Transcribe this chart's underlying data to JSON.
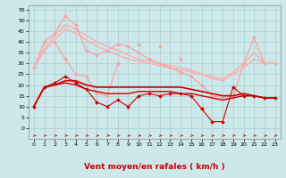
{
  "x": [
    0,
    1,
    2,
    3,
    4,
    5,
    6,
    7,
    8,
    9,
    10,
    11,
    12,
    13,
    14,
    15,
    16,
    17,
    18,
    19,
    20,
    21,
    22,
    23
  ],
  "series": [
    {
      "label": "light_top",
      "color": "#ff9999",
      "lw": 0.8,
      "marker": "D",
      "ms": 1.8,
      "values": [
        28,
        40,
        44,
        52,
        48,
        36,
        34,
        36,
        39,
        38,
        35,
        32,
        30,
        28,
        26,
        24,
        20,
        15,
        14,
        14,
        30,
        42,
        30,
        30
      ]
    },
    {
      "label": "light_scatter",
      "color": "#ff9999",
      "lw": 0.8,
      "marker": "D",
      "ms": 1.8,
      "values": [
        null,
        null,
        40,
        32,
        25,
        24,
        16,
        15,
        30,
        null,
        39,
        null,
        38,
        null,
        32,
        null,
        20,
        null,
        null,
        null,
        null,
        null,
        null,
        null
      ]
    },
    {
      "label": "light_smooth",
      "color": "#ffaaaa",
      "lw": 1.0,
      "marker": null,
      "ms": 0,
      "values": [
        28,
        37,
        43,
        48,
        46,
        43,
        40,
        38,
        36,
        34,
        32,
        31,
        30,
        29,
        28,
        27,
        25,
        24,
        23,
        26,
        30,
        35,
        30,
        30
      ]
    },
    {
      "label": "light_smooth2",
      "color": "#ffaaaa",
      "lw": 1.0,
      "marker": null,
      "ms": 0,
      "values": [
        28,
        36,
        41,
        46,
        44,
        41,
        38,
        36,
        34,
        32,
        31,
        30,
        29,
        28,
        27,
        26,
        25,
        23,
        22,
        25,
        28,
        32,
        30,
        30
      ]
    },
    {
      "label": "dark_line_main",
      "color": "#cc0000",
      "lw": 1.2,
      "marker": null,
      "ms": 0,
      "values": [
        10,
        19,
        20,
        22,
        22,
        20,
        19,
        19,
        19,
        19,
        19,
        19,
        19,
        19,
        19,
        18,
        17,
        16,
        15,
        15,
        16,
        15,
        14,
        14
      ]
    },
    {
      "label": "dark_line2",
      "color": "#cc0000",
      "lw": 1.0,
      "marker": null,
      "ms": 0,
      "values": [
        10,
        19,
        20,
        21,
        20,
        18,
        17,
        16,
        16,
        16,
        17,
        17,
        17,
        17,
        16,
        16,
        15,
        14,
        13,
        14,
        15,
        15,
        14,
        14
      ]
    },
    {
      "label": "dark_markers",
      "color": "#cc0000",
      "lw": 0.8,
      "marker": "D",
      "ms": 2.0,
      "values": [
        10,
        19,
        21,
        24,
        21,
        18,
        12,
        10,
        13,
        10,
        15,
        16,
        15,
        16,
        16,
        15,
        9,
        3,
        3,
        19,
        15,
        15,
        14,
        14
      ]
    }
  ],
  "ylim": [
    -5,
    57
  ],
  "yticks": [
    0,
    5,
    10,
    15,
    20,
    25,
    30,
    35,
    40,
    45,
    50,
    55
  ],
  "xlim": [
    -0.5,
    23.5
  ],
  "xticks": [
    0,
    1,
    2,
    3,
    4,
    5,
    6,
    7,
    8,
    9,
    10,
    11,
    12,
    13,
    14,
    15,
    16,
    17,
    18,
    19,
    20,
    21,
    22,
    23
  ],
  "xlabel": "Vent moyen/en rafales ( km/h )",
  "bg_color": "#cde8eb",
  "grid_color": "#aacccc",
  "arrow_color": "#dd0000",
  "xlabel_color": "#cc0000",
  "xlabel_fontsize": 6.5,
  "tick_fontsize": 4.5
}
